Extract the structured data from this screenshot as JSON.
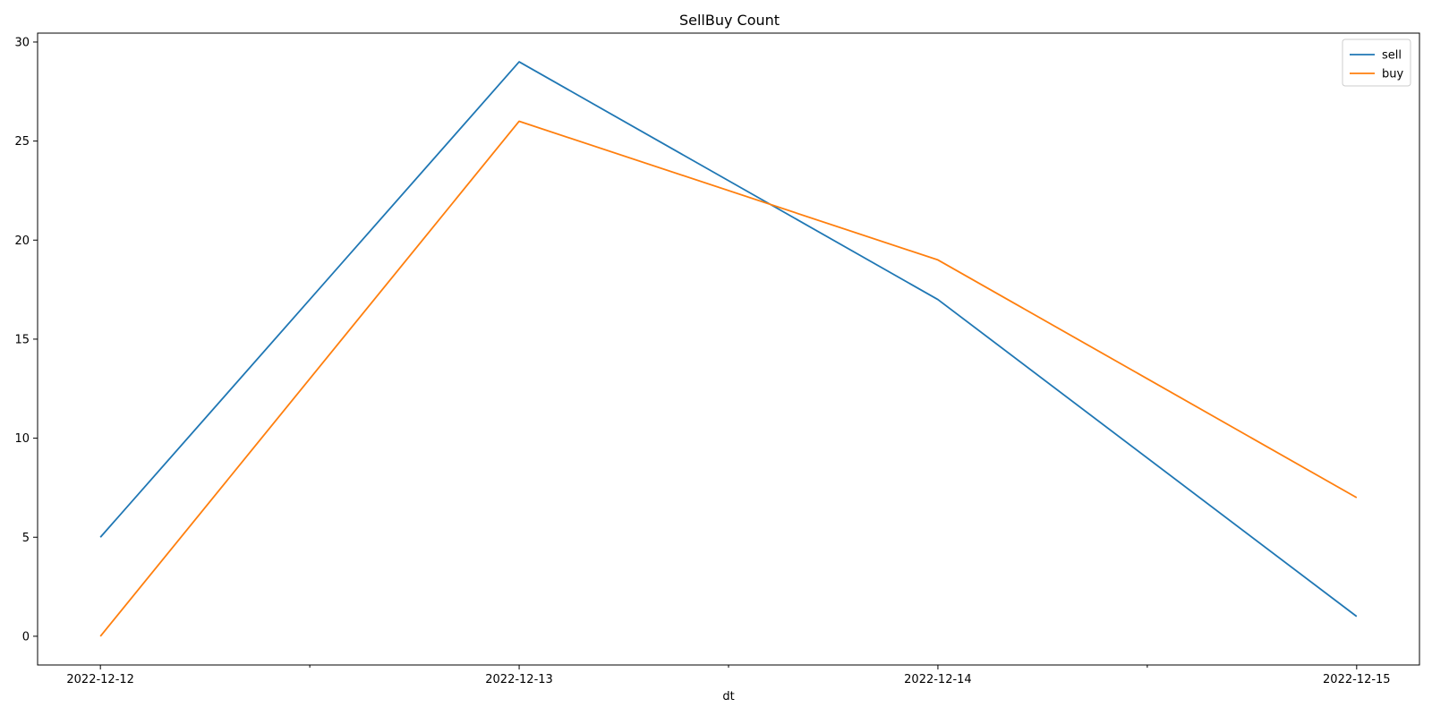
{
  "chart_data": {
    "type": "line",
    "title": "SellBuy Count",
    "xlabel": "dt",
    "ylabel": "",
    "categories": [
      "2022-12-12",
      "2022-12-13",
      "2022-12-14",
      "2022-12-15"
    ],
    "series": [
      {
        "name": "sell",
        "values": [
          5,
          29,
          17,
          1
        ],
        "color": "#1f77b4"
      },
      {
        "name": "buy",
        "values": [
          0,
          26,
          19,
          7
        ],
        "color": "#ff7f0e"
      }
    ],
    "ylim": [
      -1.45,
      30.45
    ],
    "yticks": [
      0,
      5,
      10,
      15,
      20,
      25,
      30
    ],
    "grid": false,
    "legend": "top-right"
  }
}
